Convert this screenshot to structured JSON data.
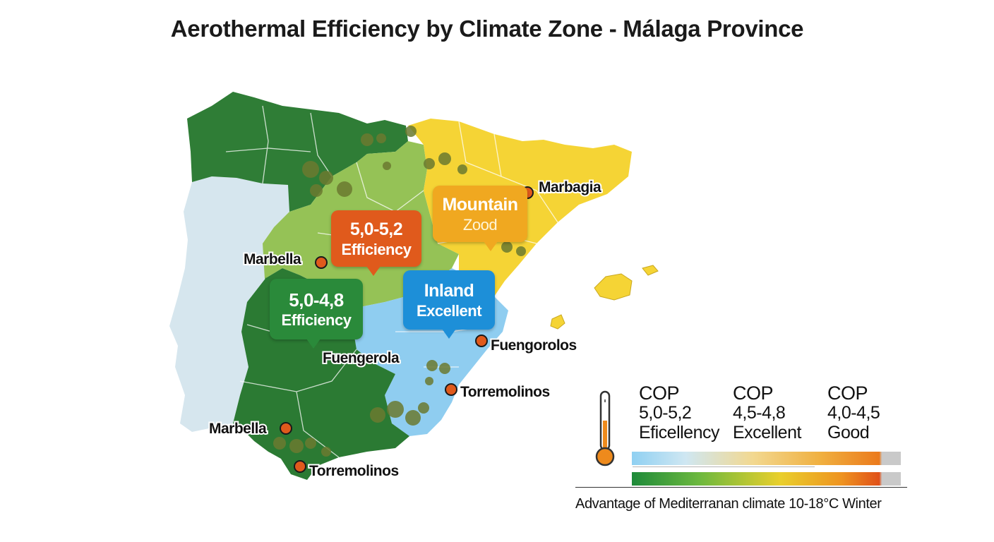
{
  "title": "Aerothermal Efficiency by Climate Zone - Málaga Province",
  "colors": {
    "portugal": "#d6e6ee",
    "northwest_green": "#2f7d36",
    "central_lightgreen": "#95c256",
    "northeast_yellow": "#f5d435",
    "east_blue": "#8fcdf0",
    "south_green": "#2b7a33"
  },
  "bubbles": {
    "orange": {
      "line1": "5,0-5,2",
      "line2": "Efficiency"
    },
    "yellow": {
      "line1": "Mountain",
      "line2": "Zood"
    },
    "blue": {
      "line1": "Inland",
      "line2": "Excellent"
    },
    "green": {
      "line1": "5,0-4,8",
      "line2": "Efficiency"
    }
  },
  "cities": {
    "marbagia": "Marbagia",
    "marbella_north": "Marbella",
    "fuengerola": "Fuengerola",
    "fuengorolos": "Fuengorolos",
    "torremolinos_east": "Torremolinos",
    "marbella_south": "Marbella",
    "torremolinos_south": "Torremolinos"
  },
  "legend": [
    {
      "label": "COP",
      "range": "5,0-5,2",
      "rating": "Eficellency"
    },
    {
      "label": "COP",
      "range": "4,5-4,8",
      "rating": "Excellent"
    },
    {
      "label": "COP",
      "range": "4,0-4,5",
      "rating": "Good"
    }
  ],
  "legend_icon": "thermometer-icon",
  "footnote": "Advantage of Mediterranan climate 10-18°C Winter"
}
